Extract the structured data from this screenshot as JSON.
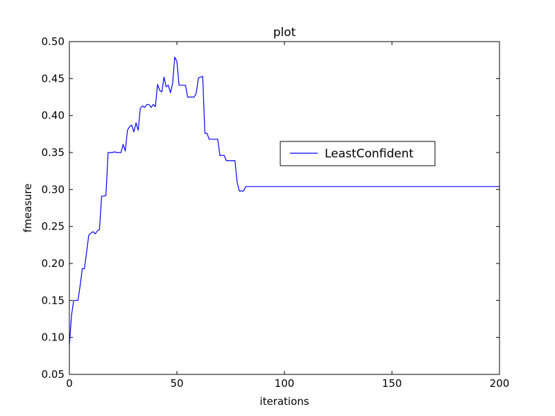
{
  "chart_data": {
    "type": "line",
    "title": "plot",
    "xlabel": "iterations",
    "ylabel": "fmeasure",
    "xlim": [
      0,
      200
    ],
    "ylim": [
      0.05,
      0.5
    ],
    "x_ticks": [
      "0",
      "50",
      "100",
      "150",
      "200"
    ],
    "y_ticks": [
      "0.05",
      "0.10",
      "0.15",
      "0.20",
      "0.25",
      "0.30",
      "0.35",
      "0.40",
      "0.45",
      "0.50"
    ],
    "grid": false,
    "legend_position": "center-right",
    "series": [
      {
        "name": "LeastConfident",
        "color": "#0000ff",
        "x": [
          0,
          1,
          2,
          3,
          4,
          5,
          6,
          7,
          8,
          9,
          10,
          11,
          12,
          13,
          14,
          15,
          16,
          17,
          18,
          19,
          20,
          21,
          22,
          23,
          24,
          25,
          26,
          27,
          28,
          29,
          30,
          31,
          32,
          33,
          34,
          35,
          36,
          37,
          38,
          39,
          40,
          41,
          42,
          43,
          44,
          45,
          46,
          47,
          48,
          49,
          50,
          51,
          52,
          53,
          54,
          55,
          56,
          57,
          58,
          59,
          60,
          61,
          62,
          63,
          64,
          65,
          66,
          67,
          68,
          69,
          70,
          71,
          72,
          73,
          74,
          75,
          76,
          77,
          78,
          79,
          80,
          81,
          82,
          200
        ],
        "y": [
          0.09,
          0.13,
          0.15,
          0.15,
          0.15,
          0.17,
          0.193,
          0.193,
          0.215,
          0.238,
          0.241,
          0.243,
          0.24,
          0.244,
          0.246,
          0.291,
          0.291,
          0.292,
          0.35,
          0.35,
          0.35,
          0.351,
          0.35,
          0.35,
          0.35,
          0.361,
          0.352,
          0.38,
          0.385,
          0.387,
          0.378,
          0.39,
          0.38,
          0.41,
          0.413,
          0.411,
          0.415,
          0.415,
          0.411,
          0.415,
          0.412,
          0.442,
          0.434,
          0.432,
          0.452,
          0.439,
          0.441,
          0.431,
          0.443,
          0.479,
          0.473,
          0.441,
          0.441,
          0.441,
          0.441,
          0.425,
          0.425,
          0.425,
          0.425,
          0.43,
          0.451,
          0.452,
          0.453,
          0.376,
          0.376,
          0.368,
          0.368,
          0.368,
          0.368,
          0.368,
          0.346,
          0.346,
          0.346,
          0.339,
          0.339,
          0.339,
          0.339,
          0.339,
          0.31,
          0.298,
          0.298,
          0.298,
          0.304,
          0.304
        ]
      }
    ]
  }
}
